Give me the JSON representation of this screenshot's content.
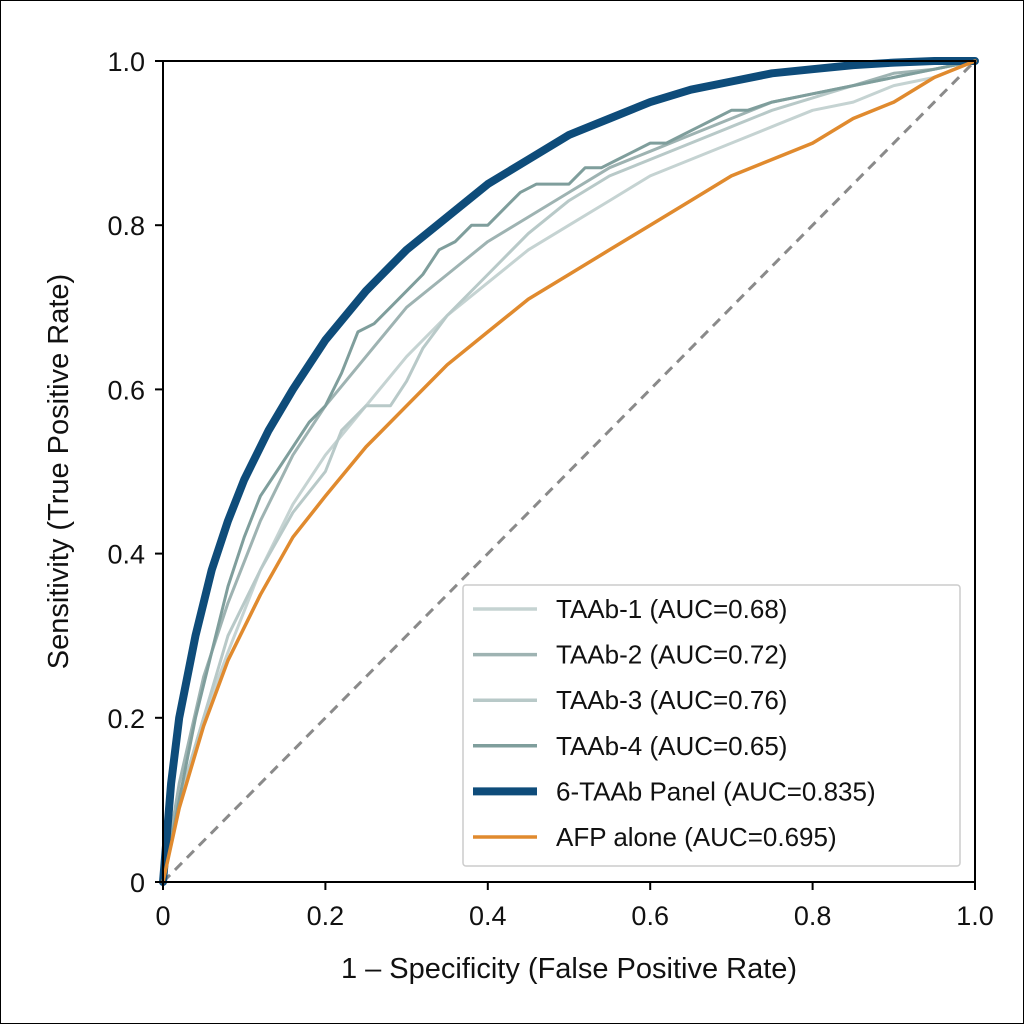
{
  "chart_data": {
    "type": "line",
    "title": "",
    "xlabel": "1 – Specificity (False Positive Rate)",
    "ylabel": "Sensitivity (True Positive Rate)",
    "xlim": [
      0,
      1
    ],
    "ylim": [
      0,
      1
    ],
    "x_ticks": [
      "0",
      "0.2",
      "0.4",
      "0.6",
      "0.8",
      "1.0"
    ],
    "y_ticks": [
      "0",
      "0.2",
      "0.4",
      "0.6",
      "0.8",
      "1.0"
    ],
    "grid": false,
    "legend_position": "bottom-right",
    "reference_line": {
      "style": "dashed",
      "color": "#8a8a8a",
      "from": [
        0,
        0
      ],
      "to": [
        1,
        1
      ]
    },
    "series": [
      {
        "name": "TAAb-1 (AUC=0.68)",
        "color": "#c5d3d2",
        "x": [
          0,
          0.02,
          0.05,
          0.08,
          0.12,
          0.16,
          0.2,
          0.25,
          0.3,
          0.35,
          0.4,
          0.45,
          0.5,
          0.55,
          0.6,
          0.65,
          0.7,
          0.75,
          0.8,
          0.85,
          0.9,
          0.95,
          1.0
        ],
        "y": [
          0,
          0.1,
          0.2,
          0.28,
          0.38,
          0.46,
          0.52,
          0.58,
          0.64,
          0.69,
          0.73,
          0.77,
          0.8,
          0.83,
          0.86,
          0.88,
          0.9,
          0.92,
          0.94,
          0.95,
          0.97,
          0.98,
          1.0
        ]
      },
      {
        "name": "TAAb-2 (AUC=0.72)",
        "color": "#9eb3b2",
        "x": [
          0,
          0.02,
          0.05,
          0.08,
          0.12,
          0.16,
          0.2,
          0.25,
          0.3,
          0.35,
          0.4,
          0.45,
          0.5,
          0.55,
          0.6,
          0.65,
          0.7,
          0.75,
          0.8,
          0.85,
          0.9,
          0.95,
          1.0
        ],
        "y": [
          0,
          0.12,
          0.25,
          0.34,
          0.44,
          0.52,
          0.58,
          0.64,
          0.7,
          0.74,
          0.78,
          0.81,
          0.84,
          0.87,
          0.89,
          0.91,
          0.93,
          0.95,
          0.96,
          0.97,
          0.985,
          0.99,
          1.0
        ]
      },
      {
        "name": "TAAb-3 (AUC=0.76)",
        "color": "#b8c9c8",
        "x": [
          0,
          0.02,
          0.05,
          0.08,
          0.12,
          0.16,
          0.2,
          0.22,
          0.25,
          0.28,
          0.3,
          0.32,
          0.35,
          0.4,
          0.45,
          0.5,
          0.55,
          0.6,
          0.65,
          0.7,
          0.75,
          0.8,
          0.85,
          0.9,
          0.95,
          1.0
        ],
        "y": [
          0,
          0.1,
          0.2,
          0.3,
          0.38,
          0.45,
          0.5,
          0.55,
          0.58,
          0.58,
          0.61,
          0.65,
          0.69,
          0.74,
          0.79,
          0.83,
          0.86,
          0.88,
          0.9,
          0.92,
          0.94,
          0.955,
          0.97,
          0.98,
          0.99,
          1.0
        ]
      },
      {
        "name": "TAAb-4 (AUC=0.65)",
        "color": "#7f9e9c",
        "x": [
          0,
          0.02,
          0.04,
          0.06,
          0.08,
          0.1,
          0.12,
          0.14,
          0.16,
          0.18,
          0.2,
          0.22,
          0.24,
          0.26,
          0.28,
          0.3,
          0.32,
          0.34,
          0.36,
          0.38,
          0.4,
          0.42,
          0.44,
          0.46,
          0.48,
          0.5,
          0.52,
          0.54,
          0.56,
          0.58,
          0.6,
          0.62,
          0.64,
          0.66,
          0.68,
          0.7,
          0.72,
          0.75,
          0.8,
          0.85,
          0.9,
          0.95,
          1.0
        ],
        "y": [
          0,
          0.1,
          0.2,
          0.28,
          0.36,
          0.42,
          0.47,
          0.5,
          0.53,
          0.56,
          0.58,
          0.62,
          0.67,
          0.68,
          0.7,
          0.72,
          0.74,
          0.77,
          0.78,
          0.8,
          0.8,
          0.82,
          0.84,
          0.85,
          0.85,
          0.85,
          0.87,
          0.87,
          0.88,
          0.89,
          0.9,
          0.9,
          0.91,
          0.92,
          0.93,
          0.94,
          0.94,
          0.95,
          0.96,
          0.97,
          0.98,
          0.99,
          1.0
        ]
      },
      {
        "name": "6-TAAb Panel (AUC=0.835)",
        "color": "#0e4c7a",
        "x": [
          0,
          0.01,
          0.02,
          0.04,
          0.06,
          0.08,
          0.1,
          0.13,
          0.16,
          0.2,
          0.25,
          0.3,
          0.35,
          0.4,
          0.45,
          0.5,
          0.55,
          0.6,
          0.65,
          0.7,
          0.75,
          0.8,
          0.85,
          0.9,
          0.95,
          1.0
        ],
        "y": [
          0,
          0.12,
          0.2,
          0.3,
          0.38,
          0.44,
          0.49,
          0.55,
          0.6,
          0.66,
          0.72,
          0.77,
          0.81,
          0.85,
          0.88,
          0.91,
          0.93,
          0.95,
          0.965,
          0.975,
          0.985,
          0.99,
          0.995,
          0.998,
          1.0,
          1.0
        ]
      },
      {
        "name": "AFP alone (AUC=0.695)",
        "color": "#e08a2e",
        "x": [
          0,
          0.02,
          0.05,
          0.08,
          0.12,
          0.16,
          0.2,
          0.25,
          0.3,
          0.35,
          0.4,
          0.45,
          0.5,
          0.55,
          0.6,
          0.65,
          0.7,
          0.75,
          0.8,
          0.85,
          0.9,
          0.95,
          1.0
        ],
        "y": [
          0,
          0.09,
          0.19,
          0.27,
          0.35,
          0.42,
          0.47,
          0.53,
          0.58,
          0.63,
          0.67,
          0.71,
          0.74,
          0.77,
          0.8,
          0.83,
          0.86,
          0.88,
          0.9,
          0.93,
          0.95,
          0.98,
          1.0
        ]
      }
    ]
  }
}
